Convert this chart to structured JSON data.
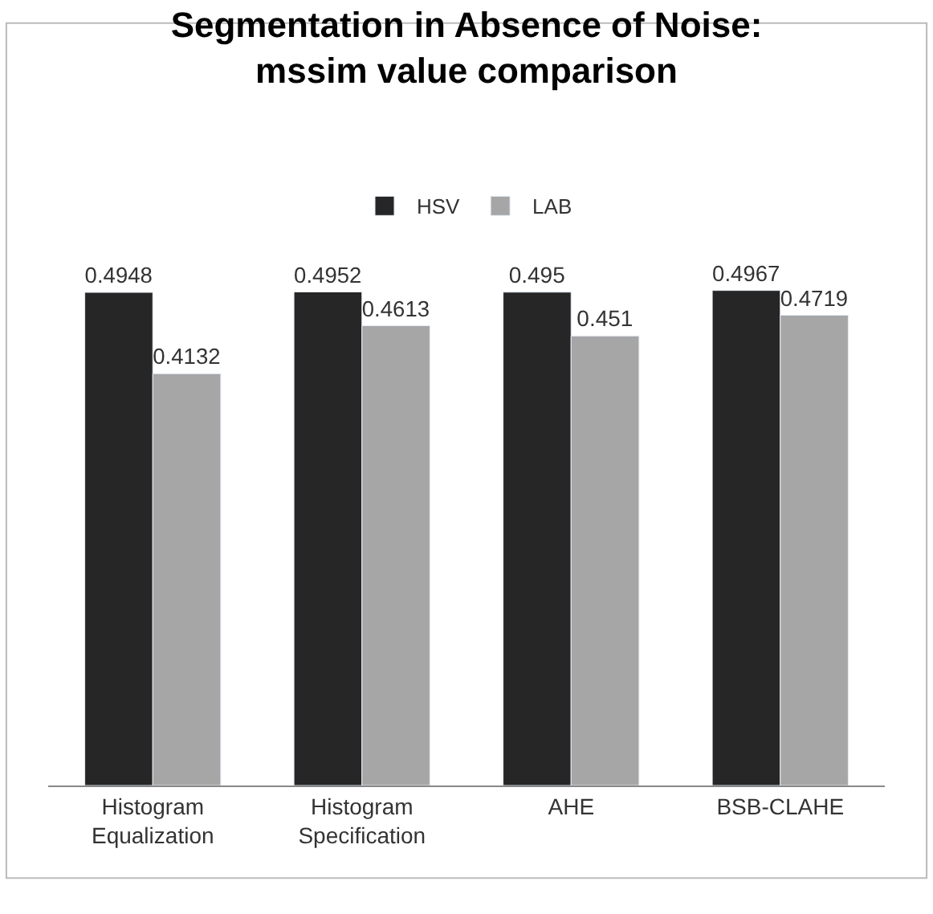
{
  "chart_data": {
    "type": "bar",
    "title": "Segmentation in Absence of Noise:\nmssim value comparison",
    "categories": [
      "Histogram Equalization",
      "Histogram Specification",
      "AHE",
      "BSB-CLAHE"
    ],
    "series": [
      {
        "name": "HSV",
        "color": "#262626",
        "values": [
          0.4948,
          0.4952,
          0.495,
          0.4967
        ]
      },
      {
        "name": "LAB",
        "color": "#a6a6a6",
        "values": [
          0.4132,
          0.4613,
          0.451,
          0.4719
        ]
      }
    ],
    "data_labels": true,
    "legend": "top"
  }
}
